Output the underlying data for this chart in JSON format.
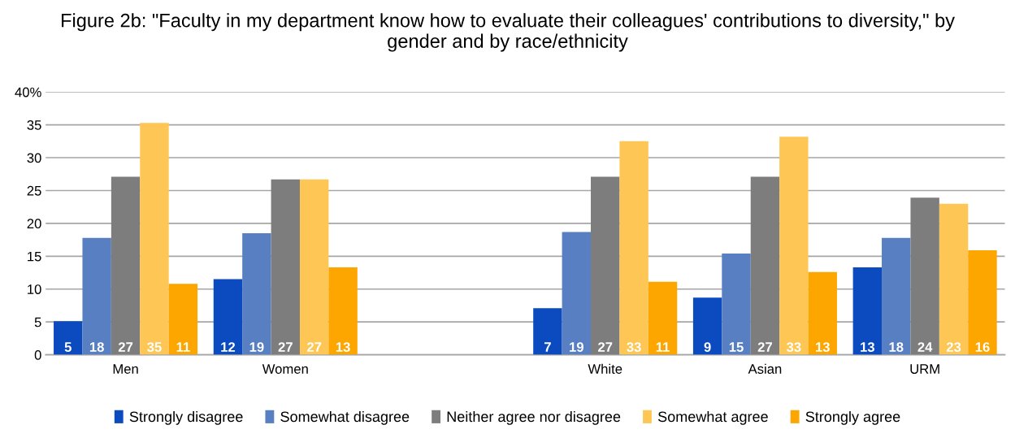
{
  "chart_data": {
    "type": "bar",
    "title": "Figure 2b: \"Faculty in my department know how to evaluate their colleagues' contributions to diversity,\" by gender and by race/ethnicity",
    "categories": [
      "Men",
      "Women",
      null,
      "White",
      "Asian",
      "URM"
    ],
    "series": [
      {
        "name": "Strongly disagree",
        "color": "#0b4bbf",
        "values": [
          5.1,
          11.5,
          null,
          7.1,
          8.7,
          13.3
        ],
        "value_labels": [
          "5",
          "12",
          null,
          "7",
          "9",
          "13"
        ]
      },
      {
        "name": "Somewhat disagree",
        "color": "#577fc2",
        "values": [
          17.8,
          18.5,
          null,
          18.7,
          15.4,
          17.8
        ],
        "value_labels": [
          "18",
          "19",
          null,
          "19",
          "15",
          "18"
        ]
      },
      {
        "name": "Neither agree nor disagree",
        "color": "#7d7d7d",
        "values": [
          27.1,
          26.7,
          null,
          27.1,
          27.1,
          23.9
        ],
        "value_labels": [
          "27",
          "27",
          null,
          "27",
          "27",
          "24"
        ]
      },
      {
        "name": "Somewhat agree",
        "color": "#fec655",
        "values": [
          35.3,
          26.7,
          null,
          32.5,
          33.2,
          23.0
        ],
        "value_labels": [
          "35",
          "27",
          null,
          "33",
          "33",
          "23"
        ]
      },
      {
        "name": "Strongly agree",
        "color": "#fea600",
        "values": [
          10.8,
          13.3,
          null,
          11.1,
          12.6,
          15.9
        ],
        "value_labels": [
          "11",
          "13",
          null,
          "11",
          "13",
          "16"
        ]
      }
    ],
    "ylim": [
      0,
      40
    ],
    "yticks": [
      0,
      5,
      10,
      15,
      20,
      25,
      30,
      35,
      {
        "value": 40,
        "label": "40%"
      }
    ],
    "grid": "y",
    "legend": "bottom"
  }
}
